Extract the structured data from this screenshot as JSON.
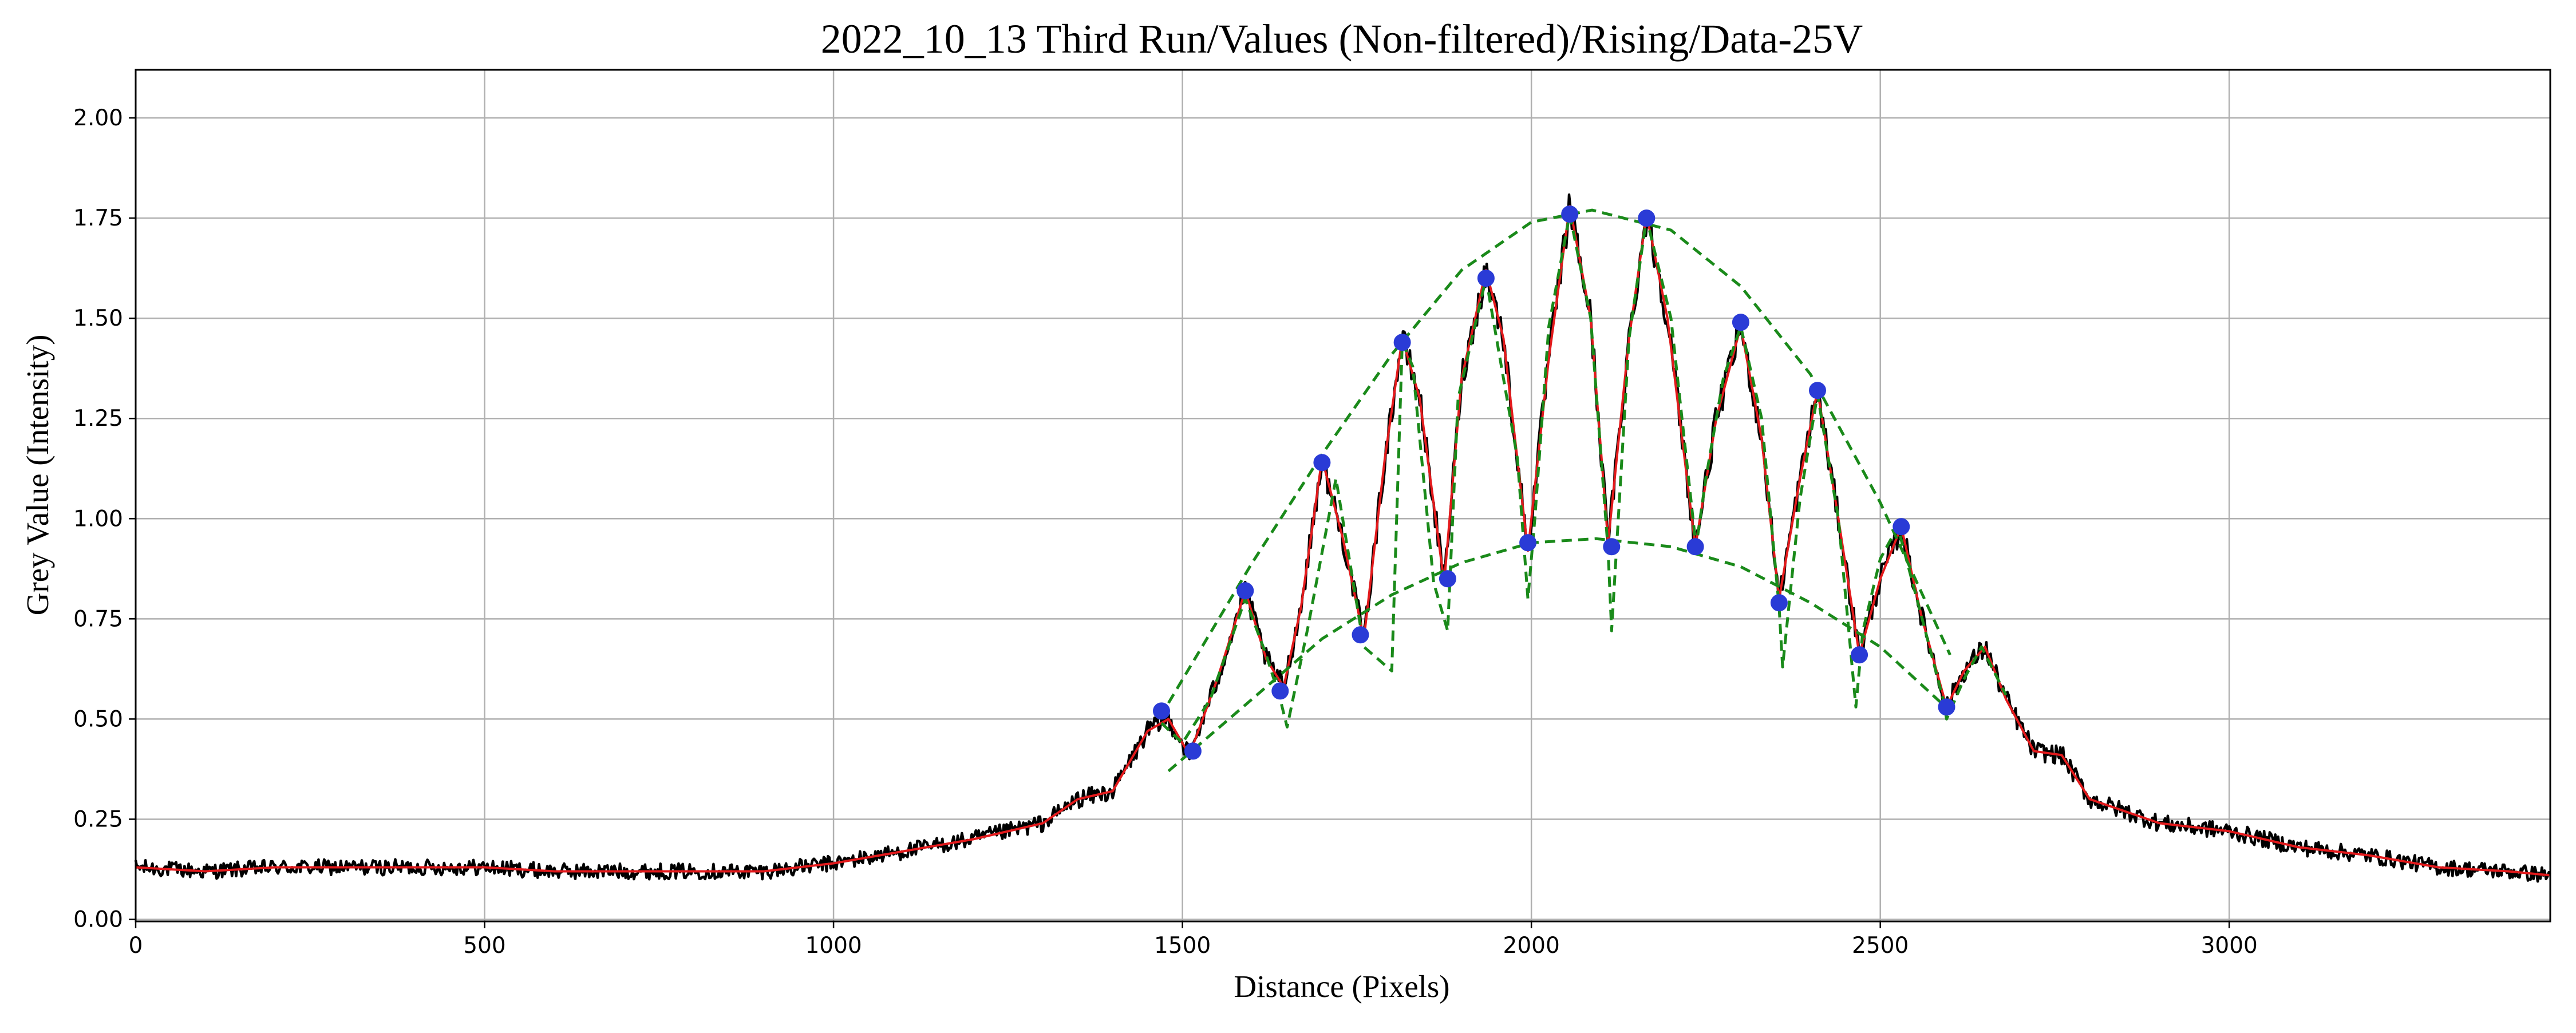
{
  "chart_data": {
    "type": "line",
    "title": "2022_10_13 Third Run/Values (Non-filtered)/Rising/Data-25V",
    "xlabel": "Distance (Pixels)",
    "ylabel": "Grey Value (Intensity)",
    "xlim": [
      0,
      3460
    ],
    "ylim": [
      -0.005,
      2.12
    ],
    "xticks": [
      0,
      500,
      1000,
      1500,
      2000,
      2500,
      3000
    ],
    "xtick_labels": [
      "0",
      "500",
      "1000",
      "1500",
      "2000",
      "2500",
      "3000"
    ],
    "yticks": [
      0.0,
      0.25,
      0.5,
      0.75,
      1.0,
      1.25,
      1.5,
      1.75,
      2.0
    ],
    "ytick_labels": [
      "0.00",
      "0.25",
      "0.50",
      "0.75",
      "1.00",
      "1.25",
      "1.50",
      "1.75",
      "2.00"
    ],
    "grid": true,
    "colors": {
      "raw": "#000000",
      "smoothed": "#e31a1c",
      "fit": "#1a8a1a",
      "peaks": "#2a3bd6",
      "grid": "#b0b0b0"
    },
    "series": [
      {
        "style": "raw",
        "noise_amplitude": 0.03,
        "x": [
          0,
          100,
          200,
          300,
          400,
          500,
          600,
          700,
          800,
          900,
          1000,
          1100,
          1200,
          1300,
          1350,
          1400,
          1450,
          1480,
          1510,
          1550,
          1590,
          1620,
          1645,
          1670,
          1700,
          1730,
          1760,
          1790,
          1815,
          1840,
          1875,
          1900,
          1935,
          1960,
          1995,
          2025,
          2055,
          2085,
          2110,
          2140,
          2165,
          2195,
          2235,
          2265,
          2300,
          2330,
          2355,
          2385,
          2410,
          2440,
          2470,
          2500,
          2530,
          2560,
          2595,
          2620,
          2650,
          2680,
          2720,
          2760,
          2800,
          2850,
          2900,
          3000,
          3100,
          3200,
          3300,
          3400,
          3460
        ],
        "y": [
          0.13,
          0.12,
          0.13,
          0.13,
          0.13,
          0.13,
          0.12,
          0.12,
          0.12,
          0.12,
          0.14,
          0.17,
          0.2,
          0.24,
          0.3,
          0.32,
          0.47,
          0.5,
          0.41,
          0.6,
          0.82,
          0.65,
          0.58,
          0.78,
          1.15,
          0.95,
          0.7,
          1.15,
          1.45,
          1.3,
          0.84,
          1.35,
          1.62,
          1.45,
          0.92,
          1.4,
          1.78,
          1.5,
          0.94,
          1.45,
          1.76,
          1.5,
          0.93,
          1.25,
          1.48,
          1.2,
          0.8,
          1.1,
          1.32,
          1.0,
          0.66,
          0.85,
          0.98,
          0.75,
          0.53,
          0.62,
          0.68,
          0.55,
          0.42,
          0.41,
          0.3,
          0.27,
          0.24,
          0.22,
          0.18,
          0.16,
          0.13,
          0.12,
          0.11
        ]
      },
      {
        "style": "smoothed",
        "x": [
          0,
          100,
          200,
          300,
          400,
          500,
          600,
          700,
          800,
          900,
          1000,
          1100,
          1200,
          1300,
          1350,
          1400,
          1450,
          1480,
          1510,
          1550,
          1590,
          1620,
          1645,
          1670,
          1700,
          1730,
          1760,
          1790,
          1815,
          1840,
          1875,
          1900,
          1935,
          1960,
          1995,
          2025,
          2055,
          2085,
          2110,
          2140,
          2165,
          2195,
          2235,
          2265,
          2300,
          2330,
          2355,
          2385,
          2410,
          2440,
          2470,
          2500,
          2530,
          2560,
          2595,
          2620,
          2650,
          2680,
          2720,
          2760,
          2800,
          2850,
          2900,
          3000,
          3100,
          3200,
          3300,
          3400,
          3460
        ],
        "y": [
          0.13,
          0.12,
          0.13,
          0.13,
          0.13,
          0.13,
          0.12,
          0.12,
          0.12,
          0.12,
          0.14,
          0.17,
          0.2,
          0.24,
          0.3,
          0.32,
          0.47,
          0.5,
          0.41,
          0.6,
          0.82,
          0.65,
          0.58,
          0.78,
          1.15,
          0.95,
          0.7,
          1.15,
          1.45,
          1.3,
          0.84,
          1.35,
          1.62,
          1.45,
          0.92,
          1.4,
          1.78,
          1.5,
          0.94,
          1.45,
          1.76,
          1.5,
          0.93,
          1.25,
          1.48,
          1.2,
          0.8,
          1.1,
          1.32,
          1.0,
          0.66,
          0.85,
          0.98,
          0.75,
          0.53,
          0.62,
          0.68,
          0.55,
          0.42,
          0.41,
          0.3,
          0.27,
          0.24,
          0.22,
          0.18,
          0.16,
          0.13,
          0.12,
          0.11
        ]
      },
      {
        "style": "fit",
        "x": [
          1480,
          1600,
          1700,
          1800,
          1900,
          2000,
          2087,
          2200,
          2300,
          2400,
          2500,
          2600
        ],
        "y": [
          0.54,
          0.89,
          1.16,
          1.41,
          1.62,
          1.74,
          1.77,
          1.72,
          1.58,
          1.36,
          1.04,
          0.66
        ]
      },
      {
        "style": "fit",
        "x": [
          1480,
          1600,
          1700,
          1800,
          1900,
          2000,
          2093,
          2200,
          2300,
          2400,
          2500,
          2600
        ],
        "y": [
          0.37,
          0.55,
          0.7,
          0.81,
          0.89,
          0.94,
          0.95,
          0.93,
          0.88,
          0.79,
          0.68,
          0.52
        ]
      },
      {
        "style": "fit",
        "x": [
          1470,
          1500,
          1540,
          1590,
          1620,
          1640,
          1650,
          1680,
          1720,
          1760,
          1800,
          1815,
          1830,
          1860,
          1880,
          1895,
          1935,
          1980,
          1995,
          2005,
          2025,
          2055,
          2085,
          2110,
          2115,
          2140,
          2165,
          2200,
          2236,
          2250,
          2275,
          2300,
          2330,
          2355,
          2360,
          2385,
          2410,
          2440,
          2465,
          2475,
          2500,
          2525,
          2560,
          2590,
          2595,
          2620,
          2645,
          2680
        ],
        "y": [
          0.49,
          0.44,
          0.55,
          0.8,
          0.66,
          0.55,
          0.48,
          0.73,
          1.1,
          0.68,
          0.62,
          1.44,
          1.38,
          0.84,
          0.72,
          1.3,
          1.6,
          1.15,
          0.8,
          1.0,
          1.48,
          1.76,
          1.5,
          0.92,
          0.72,
          1.45,
          1.75,
          1.5,
          0.93,
          1.1,
          1.35,
          1.48,
          1.25,
          0.78,
          0.63,
          1.05,
          1.31,
          1.0,
          0.53,
          0.72,
          0.9,
          0.98,
          0.75,
          0.55,
          0.5,
          0.6,
          0.68,
          0.56
        ]
      },
      {
        "style": "peaks",
        "x": [
          1470,
          1515,
          1590,
          1640,
          1700,
          1755,
          1815,
          1880,
          1935,
          1995,
          2055,
          2115,
          2165,
          2235,
          2300,
          2355,
          2410,
          2470,
          2530,
          2595
        ],
        "y": [
          0.52,
          0.42,
          0.82,
          0.57,
          1.14,
          0.71,
          1.44,
          0.85,
          1.6,
          0.94,
          1.76,
          0.93,
          1.75,
          0.93,
          1.49,
          0.79,
          1.32,
          0.66,
          0.98,
          0.53
        ]
      }
    ]
  }
}
